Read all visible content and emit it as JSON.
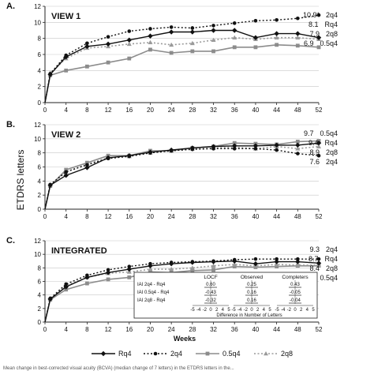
{
  "figure": {
    "ylabel": "ETDRS letters",
    "xlabel": "Weeks",
    "weeks": [
      0,
      4,
      8,
      12,
      16,
      20,
      24,
      28,
      32,
      36,
      40,
      44,
      48,
      52
    ],
    "x_ticks": [
      "0",
      "4",
      "8",
      "12",
      "16",
      "20",
      "24",
      "28",
      "32",
      "36",
      "40",
      "44",
      "48",
      "52"
    ],
    "y_ticks": [
      "0",
      "2",
      "4",
      "6",
      "8",
      "10",
      "12"
    ],
    "ylim": [
      0,
      12
    ],
    "caption_fragment": "Mean change in best-corrected visual acuity (BCVA) (median change of 7 letters) in the ETDRS letters in the..."
  },
  "legend": {
    "items": [
      {
        "key": "rq4",
        "label": "Rq4"
      },
      {
        "key": "2q4",
        "label": "2q4"
      },
      {
        "key": "05q4",
        "label": "0.5q4"
      },
      {
        "key": "2q8",
        "label": "2q8"
      }
    ]
  },
  "styles": {
    "rq4": {
      "color": "#111111",
      "dash": "",
      "marker": "diamond"
    },
    "2q4": {
      "color": "#111111",
      "dash": "2,2.5",
      "marker": "circle"
    },
    "05q4": {
      "color": "#8c8c8c",
      "dash": "",
      "marker": "square"
    },
    "2q8": {
      "color": "#9a9a9a",
      "dash": "2,2.5",
      "marker": "triangle"
    }
  },
  "panels": [
    {
      "letter": "A.",
      "title": "VIEW 1",
      "end_labels": [
        {
          "key": "2q4",
          "value": "10.9*",
          "group": "2q4"
        },
        {
          "key": "rq4",
          "value": "8.1",
          "group": "Rq4"
        },
        {
          "key": "2q8",
          "value": "7.9",
          "group": "2q8"
        },
        {
          "key": "05q4",
          "value": "6.9",
          "group": "0.5q4"
        }
      ]
    },
    {
      "letter": "B.",
      "title": "VIEW 2",
      "end_labels": [
        {
          "key": "05q4",
          "value": "9.7",
          "group": "0.5q4"
        },
        {
          "key": "rq4",
          "value": "9.4",
          "group": "Rq4"
        },
        {
          "key": "2q8",
          "value": "8.9",
          "group": "2q8"
        },
        {
          "key": "2q4",
          "value": "7.6",
          "group": "2q4"
        }
      ]
    },
    {
      "letter": "C.",
      "title": "INTEGRATED",
      "end_labels": [
        {
          "key": "2q4",
          "value": "9.3",
          "group": "2q4"
        },
        {
          "key": "rq4",
          "value": "8.7",
          "group": "Rq4"
        },
        {
          "key": "2q8",
          "value": "8.4",
          "group": "2q8"
        },
        {
          "key": "05q4",
          "value": "8.3",
          "group": "0.5q4"
        }
      ]
    }
  ],
  "inset": {
    "columns": [
      "LOCF",
      "Observed",
      "Completers"
    ],
    "x_ticks": [
      "-5",
      "-4",
      "-2",
      "0",
      "2",
      "4",
      "5"
    ],
    "xlabel": "Difference in Number of Letters",
    "rows": [
      {
        "label": "IAI 2q4 - Rq4",
        "values": [
          "0.60",
          "0.25",
          "0.43"
        ]
      },
      {
        "label": "IAI 0.5q4 - Rq4",
        "values": [
          "-0.43",
          "0.16",
          "-0.05"
        ]
      },
      {
        "label": "IAI 2q8 - Rq4",
        "values": [
          "-0.32",
          "0.16",
          "-0.04"
        ]
      }
    ]
  },
  "chart_data": [
    {
      "type": "line",
      "title": "VIEW 1",
      "xlabel": "",
      "ylabel": "ETDRS letters",
      "ylim": [
        0,
        12
      ],
      "grid": true,
      "x": [
        0,
        1,
        4,
        8,
        12,
        16,
        20,
        24,
        28,
        32,
        36,
        40,
        44,
        48,
        52
      ],
      "series": [
        {
          "name": "Rq4",
          "key": "rq4",
          "values": [
            0,
            3.5,
            5.7,
            7.0,
            7.3,
            7.8,
            8.3,
            8.8,
            8.8,
            9.0,
            9.0,
            8.1,
            8.6,
            8.6,
            8.1
          ]
        },
        {
          "name": "2q4",
          "key": "2q4",
          "values": [
            0,
            3.6,
            5.9,
            7.4,
            8.2,
            8.9,
            9.2,
            9.4,
            9.3,
            9.6,
            9.9,
            10.2,
            10.3,
            10.5,
            10.9
          ]
        },
        {
          "name": "0.5q4",
          "key": "05q4",
          "values": [
            0,
            3.4,
            4.0,
            4.5,
            5.0,
            5.5,
            6.6,
            6.2,
            6.4,
            6.4,
            6.9,
            6.9,
            7.2,
            7.1,
            6.9
          ]
        },
        {
          "name": "2q8",
          "key": "2q8",
          "values": [
            0,
            3.7,
            5.5,
            6.8,
            7.0,
            7.3,
            7.5,
            7.2,
            7.4,
            7.8,
            8.1,
            7.9,
            8.1,
            8.1,
            7.9
          ]
        }
      ]
    },
    {
      "type": "line",
      "title": "VIEW 2",
      "xlabel": "",
      "ylabel": "ETDRS letters",
      "ylim": [
        0,
        12
      ],
      "grid": true,
      "x": [
        0,
        1,
        4,
        8,
        12,
        16,
        20,
        24,
        28,
        32,
        36,
        40,
        44,
        48,
        52
      ],
      "series": [
        {
          "name": "Rq4",
          "key": "rq4",
          "values": [
            0,
            3.4,
            4.8,
            5.9,
            7.3,
            7.6,
            8.1,
            8.4,
            8.7,
            8.9,
            9.0,
            9.0,
            9.1,
            9.1,
            9.4
          ]
        },
        {
          "name": "2q4",
          "key": "2q4",
          "values": [
            0,
            3.5,
            5.3,
            6.3,
            7.2,
            7.5,
            8.0,
            8.3,
            8.5,
            8.6,
            8.6,
            8.6,
            8.4,
            7.9,
            7.6
          ]
        },
        {
          "name": "0.5q4",
          "key": "05q4",
          "values": [
            0,
            3.3,
            5.6,
            6.6,
            7.6,
            7.6,
            8.3,
            8.3,
            8.7,
            8.9,
            9.4,
            9.3,
            9.2,
            9.6,
            9.7
          ]
        },
        {
          "name": "2q8",
          "key": "2q8",
          "values": [
            0,
            3.4,
            5.3,
            6.4,
            7.3,
            7.5,
            8.0,
            8.3,
            8.6,
            8.7,
            8.8,
            8.6,
            8.9,
            8.6,
            8.9
          ]
        }
      ]
    },
    {
      "type": "line",
      "title": "INTEGRATED",
      "xlabel": "Weeks",
      "ylabel": "ETDRS letters",
      "ylim": [
        0,
        12
      ],
      "grid": true,
      "x": [
        0,
        1,
        4,
        8,
        12,
        16,
        20,
        24,
        28,
        32,
        36,
        40,
        44,
        48,
        52
      ],
      "series": [
        {
          "name": "Rq4",
          "key": "rq4",
          "values": [
            0,
            3.4,
            5.2,
            6.6,
            7.3,
            7.8,
            8.3,
            8.6,
            8.8,
            8.9,
            9.0,
            8.6,
            8.9,
            8.9,
            8.7
          ]
        },
        {
          "name": "2q4",
          "key": "2q4",
          "values": [
            0,
            3.5,
            5.6,
            6.9,
            7.7,
            8.2,
            8.6,
            8.8,
            8.9,
            9.0,
            9.2,
            9.3,
            9.3,
            9.3,
            9.3
          ]
        },
        {
          "name": "0.5q4",
          "key": "05q4",
          "values": [
            0,
            3.3,
            4.8,
            5.7,
            6.3,
            6.6,
            7.4,
            7.3,
            7.6,
            7.7,
            8.2,
            8.1,
            8.2,
            8.3,
            8.3
          ]
        },
        {
          "name": "2q8",
          "key": "2q8",
          "values": [
            0,
            3.5,
            5.4,
            6.6,
            7.2,
            7.4,
            7.8,
            7.8,
            8.0,
            8.3,
            8.5,
            8.3,
            8.5,
            8.4,
            8.4
          ]
        }
      ]
    }
  ]
}
